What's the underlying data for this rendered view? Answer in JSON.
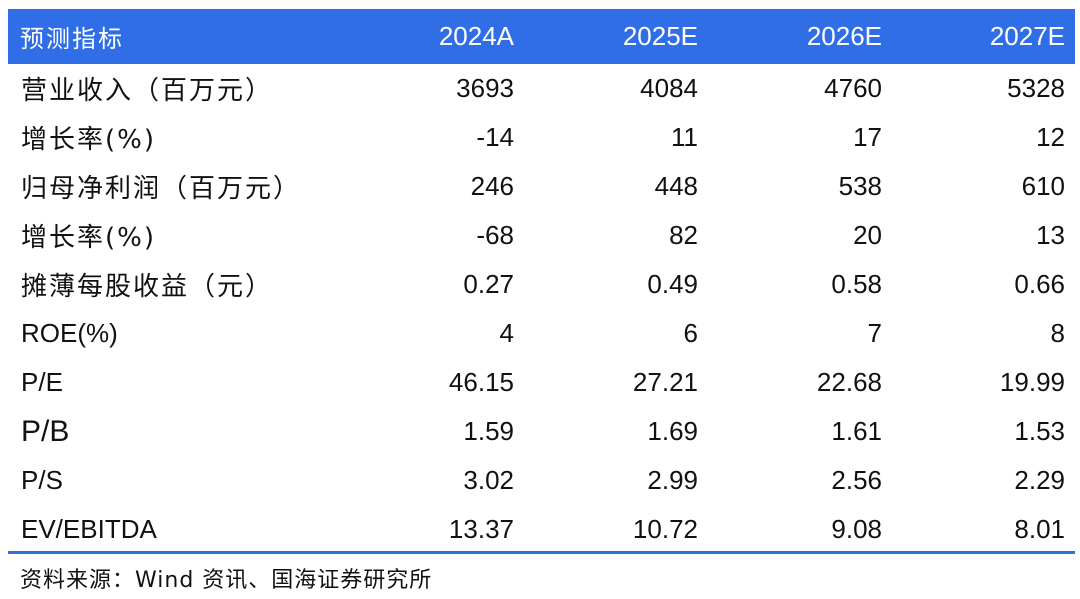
{
  "table": {
    "header": [
      "预测指标",
      "2024A",
      "2025E",
      "2026E",
      "2027E"
    ],
    "rows": [
      {
        "label": "营业收入（百万元）",
        "values": [
          "3693",
          "4084",
          "4760",
          "5328"
        ]
      },
      {
        "label": "增长率(%)",
        "values": [
          "-14",
          "11",
          "17",
          "12"
        ]
      },
      {
        "label": "归母净利润（百万元）",
        "values": [
          "246",
          "448",
          "538",
          "610"
        ]
      },
      {
        "label": "增长率(%)",
        "values": [
          "-68",
          "82",
          "20",
          "13"
        ]
      },
      {
        "label": "摊薄每股收益（元）",
        "values": [
          "0.27",
          "0.49",
          "0.58",
          "0.66"
        ]
      },
      {
        "label": "ROE(%)",
        "values": [
          "4",
          "6",
          "7",
          "8"
        ]
      },
      {
        "label": "P/E",
        "values": [
          "46.15",
          "27.21",
          "22.68",
          "19.99"
        ]
      },
      {
        "label": "P/B",
        "values": [
          "1.59",
          "1.69",
          "1.61",
          "1.53"
        ]
      },
      {
        "label": "P/S",
        "values": [
          "3.02",
          "2.99",
          "2.56",
          "2.29"
        ]
      },
      {
        "label": "EV/EBITDA",
        "values": [
          "13.37",
          "10.72",
          "9.08",
          "8.01"
        ]
      }
    ]
  },
  "source": "资料来源：Wind 资讯、国海证券研究所",
  "colors": {
    "header_bg": "#2f6ee6",
    "header_text": "#ffffff",
    "rule": "#2f6ee6"
  }
}
